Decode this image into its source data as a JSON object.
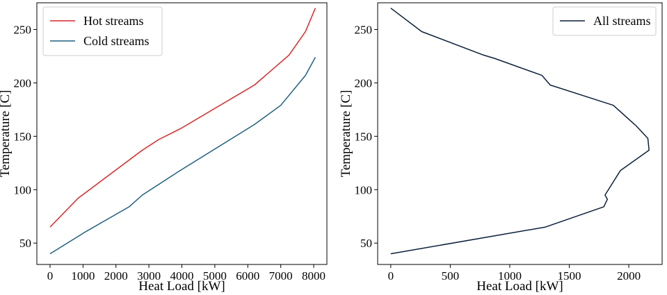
{
  "chart_data": [
    {
      "type": "line",
      "xlabel": "Heat Load [kW]",
      "ylabel": "Temperature [C]",
      "xlim": [
        -400,
        8400
      ],
      "ylim": [
        30,
        275
      ],
      "xticks": [
        0,
        1000,
        2000,
        3000,
        4000,
        5000,
        6000,
        7000,
        8000
      ],
      "yticks": [
        50,
        100,
        150,
        200,
        250
      ],
      "grid": false,
      "legend": "top-left",
      "series": [
        {
          "name": "Hot streams",
          "color": "#d62728",
          "x": [
            0,
            850,
            2800,
            3300,
            3950,
            6200,
            7250,
            7750,
            8050
          ],
          "y": [
            65,
            92,
            137,
            147,
            157,
            198,
            226,
            248,
            270
          ]
        },
        {
          "name": "Cold streams",
          "color": "#1f5f7f",
          "x": [
            0,
            1100,
            2400,
            2800,
            3950,
            6200,
            7000,
            7750,
            8050
          ],
          "y": [
            40,
            61,
            84,
            95,
            118,
            161,
            179,
            207,
            224
          ]
        }
      ]
    },
    {
      "type": "line",
      "xlabel": "Heat Load [kW]",
      "ylabel": "Temperature [C]",
      "xlim": [
        -110,
        2280
      ],
      "ylim": [
        30,
        275
      ],
      "xticks": [
        0,
        500,
        1000,
        1500,
        2000
      ],
      "yticks": [
        50,
        100,
        150,
        200,
        250
      ],
      "grid": false,
      "legend": "top-right",
      "series": [
        {
          "name": "All streams",
          "color": "#0b1f3a",
          "x": [
            0,
            260,
            780,
            870,
            1270,
            1340,
            1870,
            2040,
            2060,
            2160,
            2170,
            1930,
            1800,
            1820,
            1790,
            1300,
            0
          ],
          "y": [
            270,
            248,
            226,
            223,
            207,
            198,
            179,
            162,
            160,
            148,
            137,
            118,
            95,
            91,
            84,
            65,
            40
          ]
        }
      ]
    }
  ]
}
